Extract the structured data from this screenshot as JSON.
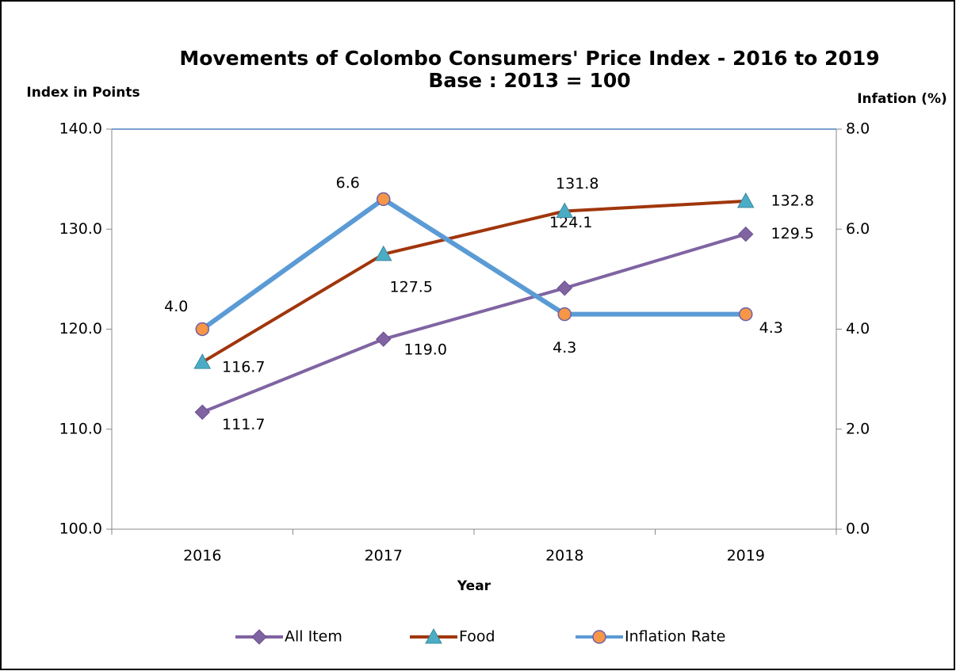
{
  "chart_data": {
    "type": "line",
    "title": "Movements of Colombo Consumers' Price Index - 2016 to 2019",
    "subtitle": "Base : 2013 = 100",
    "y_label": "Index in Points",
    "y2_label": "Infation (%)",
    "x_label": "Year",
    "categories": [
      "2016",
      "2017",
      "2018",
      "2019"
    ],
    "ylim": [
      100,
      140
    ],
    "yticks": [
      {
        "value": 100,
        "label": "100.0"
      },
      {
        "value": 110,
        "label": "110.0"
      },
      {
        "value": 120,
        "label": "120.0"
      },
      {
        "value": 130,
        "label": "130.0"
      },
      {
        "value": 140,
        "label": "140.0"
      }
    ],
    "y2lim": [
      0,
      8
    ],
    "y2ticks": [
      {
        "value": 0,
        "label": "0.0"
      },
      {
        "value": 2,
        "label": "2.0"
      },
      {
        "value": 4,
        "label": "4.0"
      },
      {
        "value": 6,
        "label": "6.0"
      },
      {
        "value": 8,
        "label": "8.0"
      }
    ],
    "grid": false,
    "series": [
      {
        "name": "All Item",
        "color": "#8064a2",
        "marker": "diamond",
        "marker_color": "#8064a2",
        "values": [
          111.7,
          119.0,
          124.1,
          129.5
        ],
        "value_labels": [
          "111.7",
          "119.0",
          "124.1",
          "129.5"
        ]
      },
      {
        "name": "Food",
        "color": "#a0360c",
        "marker": "triangle",
        "marker_color": "#4bacc6",
        "values": [
          116.7,
          127.5,
          131.8,
          132.8
        ],
        "value_labels": [
          "116.7",
          "127.5",
          "131.8",
          "132.8"
        ]
      },
      {
        "name": "Inflation Rate",
        "color": "#5b9bd5",
        "marker": "circle",
        "marker_color": "#f79646",
        "axis": "y2",
        "values": [
          4.0,
          6.6,
          4.3,
          4.3
        ],
        "value_labels": [
          "4.0",
          "6.6",
          "4.3",
          "4.3"
        ]
      }
    ]
  }
}
